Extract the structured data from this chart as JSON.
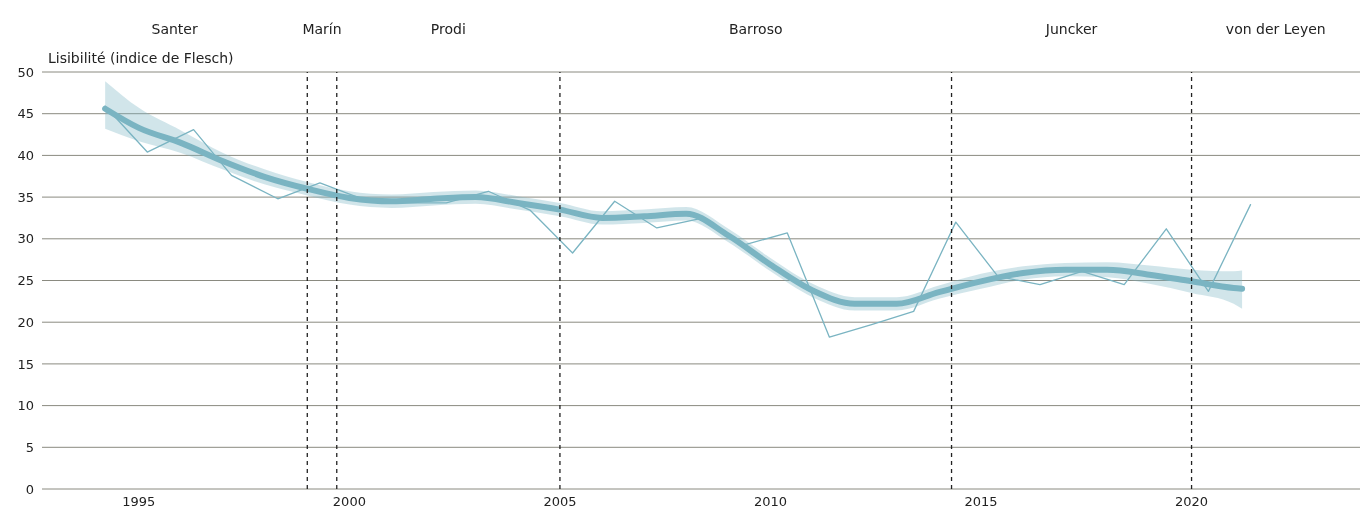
{
  "chart_data": {
    "type": "line",
    "ylabel": "Lisibilité (indice de Flesch)",
    "xlim": [
      1992.7,
      2024.0
    ],
    "xticks": [
      1995,
      2000,
      2005,
      2010,
      2015,
      2020
    ],
    "ylim": [
      0,
      50
    ],
    "yticks": [
      0,
      5,
      10,
      15,
      20,
      25,
      30,
      35,
      40,
      45,
      50
    ],
    "grid": "y",
    "line_style": "solid",
    "marker": "none",
    "series": [
      {
        "color": "#7ab4c2",
        "x": [
          1994.2,
          1995.2,
          1996.3,
          1997.2,
          1998.3,
          1999.3,
          2000.3,
          2001.3,
          2002.3,
          2003.3,
          2004.3,
          2005.3,
          2006.3,
          2007.3,
          2008.3,
          2009.4,
          2010.4,
          2011.4,
          2012.4,
          2013.4,
          2014.4,
          2015.4,
          2016.4,
          2017.4,
          2018.4,
          2019.4,
          2020.4,
          2021.4
        ],
        "values": [
          45.9,
          40.4,
          43.1,
          37.6,
          34.8,
          36.7,
          34.8,
          34.3,
          34.3,
          35.7,
          33.4,
          28.3,
          34.5,
          31.3,
          32.4,
          29.3,
          30.7,
          18.2,
          19.7,
          21.3,
          32.0,
          25.5,
          24.5,
          26.1,
          24.5,
          31.2,
          23.7,
          34.1
        ]
      },
      {
        "color": "#7ab4c2",
        "x": [
          1994.2,
          1995,
          1996,
          1997,
          1998,
          1999,
          2000,
          2001,
          2002,
          2003,
          2004,
          2005,
          2006,
          2007,
          2008,
          2009,
          2010,
          2011,
          2012,
          2013,
          2014,
          2015,
          2016,
          2017,
          2018,
          2019,
          2020,
          2021,
          2021.2
        ],
        "values": [
          45.6,
          43.3,
          41.5,
          39.3,
          37.4,
          36.0,
          34.9,
          34.5,
          34.8,
          35.0,
          34.3,
          33.5,
          32.5,
          32.7,
          33.0,
          30.4,
          26.9,
          23.8,
          22.2,
          22.2,
          23.6,
          24.9,
          25.9,
          26.3,
          26.3,
          25.7,
          24.9,
          24.1,
          24.0
        ],
        "lower": [
          43.2,
          41.7,
          40.3,
          38.3,
          36.5,
          35.2,
          34.1,
          33.7,
          34.0,
          34.2,
          33.5,
          32.7,
          31.7,
          31.9,
          32.2,
          29.6,
          26.1,
          23.0,
          21.4,
          21.4,
          22.8,
          24.0,
          25.1,
          25.5,
          25.4,
          24.6,
          23.5,
          22.2,
          21.6
        ],
        "upper": [
          48.9,
          45.7,
          43.0,
          40.3,
          38.3,
          36.8,
          35.7,
          35.3,
          35.6,
          35.8,
          35.1,
          34.3,
          33.3,
          33.5,
          33.8,
          31.2,
          27.7,
          24.6,
          23.0,
          23.0,
          24.4,
          25.8,
          26.7,
          27.1,
          27.2,
          26.8,
          26.3,
          26.1,
          26.2
        ]
      }
    ],
    "ref_lines": [
      {
        "axis": "x",
        "value": 1999.0,
        "color": "#222222",
        "line_style": "dashed"
      },
      {
        "axis": "x",
        "value": 1999.7,
        "color": "#222222",
        "line_style": "dashed"
      },
      {
        "axis": "x",
        "value": 2005.0,
        "color": "#222222",
        "line_style": "dashed"
      },
      {
        "axis": "x",
        "value": 2014.3,
        "color": "#222222",
        "line_style": "dashed"
      },
      {
        "axis": "x",
        "value": 2020.0,
        "color": "#222222",
        "line_style": "dashed"
      }
    ],
    "annotations": [
      "Santer",
      "Marín",
      "Prodi",
      "Barroso",
      "Juncker",
      "von der Leyen"
    ]
  }
}
